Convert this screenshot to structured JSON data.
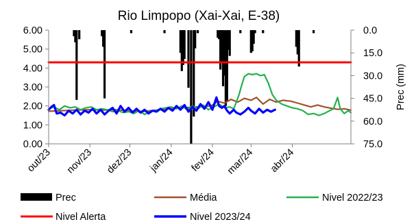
{
  "chart_data": {
    "type": "line",
    "title": "Rio Limpopo (Xai-Xai, E-38)",
    "y_left_label": "",
    "y_right_label": "Prec (mm)",
    "y_left_ticks": [
      "0.00",
      "1.00",
      "2.00",
      "3.00",
      "4.00",
      "5.00",
      "6.00"
    ],
    "y_right_ticks": [
      "0.0",
      "15.0",
      "30.0",
      "45.0",
      "60.0",
      "75.0"
    ],
    "y_left_range": [
      0,
      6
    ],
    "y_right_range": [
      0,
      75
    ],
    "y_right_inverted": true,
    "x_ticks": [
      "out/23",
      "nov/23",
      "dez/23",
      "jan/24",
      "fev/24",
      "mar/24",
      "abr/24"
    ],
    "x_tick_dates": [
      "2023-10-01",
      "2023-11-01",
      "2023-12-01",
      "2024-01-01",
      "2024-02-01",
      "2024-03-01",
      "2024-04-01"
    ],
    "x_range": [
      "2023-10-01",
      "2024-05-15"
    ],
    "legend_position": "bottom",
    "series": [
      {
        "name": "Nivel Alerta",
        "axis": "left",
        "color": "#ff0000",
        "width": 3,
        "points": [
          [
            "2023-10-01",
            4.3
          ],
          [
            "2024-05-15",
            4.3
          ]
        ]
      },
      {
        "name": "Média",
        "axis": "left",
        "color": "#a0522d",
        "width": 2.2,
        "points": [
          [
            "2023-10-01",
            1.72
          ],
          [
            "2023-10-10",
            1.75
          ],
          [
            "2023-10-20",
            1.78
          ],
          [
            "2023-10-31",
            1.8
          ],
          [
            "2023-11-10",
            1.78
          ],
          [
            "2023-11-20",
            1.8
          ],
          [
            "2023-11-30",
            1.75
          ],
          [
            "2023-12-10",
            1.7
          ],
          [
            "2023-12-20",
            1.78
          ],
          [
            "2023-12-31",
            1.85
          ],
          [
            "2024-01-10",
            1.9
          ],
          [
            "2024-01-20",
            1.95
          ],
          [
            "2024-01-31",
            2.0
          ],
          [
            "2024-02-05",
            2.25
          ],
          [
            "2024-02-10",
            2.15
          ],
          [
            "2024-02-15",
            2.35
          ],
          [
            "2024-02-20",
            2.2
          ],
          [
            "2024-02-25",
            2.4
          ],
          [
            "2024-03-01",
            2.3
          ],
          [
            "2024-03-05",
            2.45
          ],
          [
            "2024-03-10",
            2.1
          ],
          [
            "2024-03-15",
            2.35
          ],
          [
            "2024-03-20",
            2.2
          ],
          [
            "2024-03-25",
            2.3
          ],
          [
            "2024-03-31",
            2.25
          ],
          [
            "2024-04-05",
            2.15
          ],
          [
            "2024-04-10",
            2.05
          ],
          [
            "2024-04-15",
            1.95
          ],
          [
            "2024-04-20",
            2.05
          ],
          [
            "2024-04-25",
            1.95
          ],
          [
            "2024-04-30",
            1.88
          ],
          [
            "2024-05-05",
            1.82
          ],
          [
            "2024-05-10",
            1.85
          ],
          [
            "2024-05-15",
            1.78
          ]
        ]
      },
      {
        "name": "Nivel 2022/23",
        "axis": "left",
        "color": "#22b14c",
        "width": 2.2,
        "points": [
          [
            "2023-10-01",
            1.85
          ],
          [
            "2023-10-05",
            1.95
          ],
          [
            "2023-10-09",
            1.8
          ],
          [
            "2023-10-13",
            2.0
          ],
          [
            "2023-10-17",
            1.9
          ],
          [
            "2023-10-21",
            1.95
          ],
          [
            "2023-10-25",
            1.8
          ],
          [
            "2023-10-29",
            1.9
          ],
          [
            "2023-11-02",
            1.95
          ],
          [
            "2023-11-06",
            1.8
          ],
          [
            "2023-11-10",
            1.85
          ],
          [
            "2023-11-14",
            1.8
          ],
          [
            "2023-11-18",
            1.7
          ],
          [
            "2023-11-22",
            1.75
          ],
          [
            "2023-11-26",
            1.65
          ],
          [
            "2023-11-30",
            1.7
          ],
          [
            "2023-12-04",
            1.6
          ],
          [
            "2023-12-08",
            1.75
          ],
          [
            "2023-12-12",
            1.55
          ],
          [
            "2023-12-16",
            1.7
          ],
          [
            "2023-12-20",
            1.75
          ],
          [
            "2023-12-24",
            1.85
          ],
          [
            "2023-12-28",
            1.9
          ],
          [
            "2024-01-01",
            1.95
          ],
          [
            "2024-01-05",
            1.85
          ],
          [
            "2024-01-09",
            2.0
          ],
          [
            "2024-01-13",
            1.8
          ],
          [
            "2024-01-17",
            2.0
          ],
          [
            "2024-01-21",
            1.85
          ],
          [
            "2024-01-25",
            2.05
          ],
          [
            "2024-01-29",
            1.8
          ],
          [
            "2024-02-02",
            1.95
          ],
          [
            "2024-02-06",
            2.1
          ],
          [
            "2024-02-10",
            1.9
          ],
          [
            "2024-02-14",
            1.95
          ],
          [
            "2024-02-17",
            1.85
          ],
          [
            "2024-02-19",
            2.2
          ],
          [
            "2024-02-21",
            2.6
          ],
          [
            "2024-02-23",
            3.1
          ],
          [
            "2024-02-25",
            3.55
          ],
          [
            "2024-02-28",
            3.7
          ],
          [
            "2024-03-02",
            3.65
          ],
          [
            "2024-03-05",
            3.7
          ],
          [
            "2024-03-08",
            3.6
          ],
          [
            "2024-03-11",
            3.65
          ],
          [
            "2024-03-14",
            3.2
          ],
          [
            "2024-03-17",
            2.6
          ],
          [
            "2024-03-20",
            2.3
          ],
          [
            "2024-03-24",
            2.1
          ],
          [
            "2024-03-28",
            2.0
          ],
          [
            "2024-04-01",
            1.9
          ],
          [
            "2024-04-05",
            1.85
          ],
          [
            "2024-04-09",
            1.75
          ],
          [
            "2024-04-13",
            1.55
          ],
          [
            "2024-04-17",
            1.6
          ],
          [
            "2024-04-21",
            1.5
          ],
          [
            "2024-04-25",
            1.6
          ],
          [
            "2024-04-29",
            1.75
          ],
          [
            "2024-05-02",
            1.85
          ],
          [
            "2024-05-05",
            2.45
          ],
          [
            "2024-05-07",
            1.85
          ],
          [
            "2024-05-10",
            1.6
          ],
          [
            "2024-05-13",
            1.75
          ],
          [
            "2024-05-15",
            1.65
          ]
        ]
      },
      {
        "name": "Nivel 2023/24",
        "axis": "left",
        "color": "#0000ff",
        "width": 3.2,
        "points": [
          [
            "2023-10-01",
            1.8
          ],
          [
            "2023-10-03",
            1.95
          ],
          [
            "2023-10-05",
            2.05
          ],
          [
            "2023-10-07",
            1.6
          ],
          [
            "2023-10-10",
            1.65
          ],
          [
            "2023-10-13",
            1.5
          ],
          [
            "2023-10-16",
            1.75
          ],
          [
            "2023-10-19",
            1.6
          ],
          [
            "2023-10-22",
            1.8
          ],
          [
            "2023-10-25",
            1.55
          ],
          [
            "2023-10-28",
            1.75
          ],
          [
            "2023-10-31",
            1.65
          ],
          [
            "2023-11-03",
            1.85
          ],
          [
            "2023-11-06",
            1.6
          ],
          [
            "2023-11-09",
            1.8
          ],
          [
            "2023-11-12",
            1.55
          ],
          [
            "2023-11-15",
            1.75
          ],
          [
            "2023-11-18",
            1.9
          ],
          [
            "2023-11-21",
            1.6
          ],
          [
            "2023-11-24",
            2.0
          ],
          [
            "2023-11-27",
            1.7
          ],
          [
            "2023-11-30",
            1.9
          ],
          [
            "2023-12-03",
            1.65
          ],
          [
            "2023-12-06",
            1.85
          ],
          [
            "2023-12-09",
            1.65
          ],
          [
            "2023-12-12",
            1.8
          ],
          [
            "2023-12-15",
            1.6
          ],
          [
            "2023-12-18",
            1.75
          ],
          [
            "2023-12-21",
            1.7
          ],
          [
            "2023-12-24",
            1.85
          ],
          [
            "2023-12-27",
            1.7
          ],
          [
            "2023-12-30",
            1.9
          ],
          [
            "2024-01-02",
            1.75
          ],
          [
            "2024-01-05",
            2.0
          ],
          [
            "2024-01-08",
            1.8
          ],
          [
            "2024-01-11",
            2.05
          ],
          [
            "2024-01-14",
            1.7
          ],
          [
            "2024-01-17",
            1.95
          ],
          [
            "2024-01-20",
            1.75
          ],
          [
            "2024-01-23",
            2.1
          ],
          [
            "2024-01-26",
            1.85
          ],
          [
            "2024-01-29",
            2.2
          ],
          [
            "2024-02-01",
            1.8
          ],
          [
            "2024-02-04",
            2.45
          ],
          [
            "2024-02-06",
            2.0
          ],
          [
            "2024-02-08",
            1.9
          ],
          [
            "2024-02-10",
            2.0
          ],
          [
            "2024-02-12",
            1.75
          ],
          [
            "2024-02-14",
            1.6
          ],
          [
            "2024-02-17",
            1.8
          ],
          [
            "2024-02-19",
            1.65
          ],
          [
            "2024-02-22",
            1.55
          ],
          [
            "2024-02-25",
            1.7
          ],
          [
            "2024-02-28",
            1.9
          ],
          [
            "2024-03-01",
            1.75
          ],
          [
            "2024-03-04",
            1.6
          ],
          [
            "2024-03-07",
            1.85
          ],
          [
            "2024-03-10",
            1.65
          ],
          [
            "2024-03-13",
            1.8
          ],
          [
            "2024-03-16",
            1.7
          ],
          [
            "2024-03-19",
            1.8
          ]
        ]
      }
    ],
    "precipitation": {
      "name": "Prec",
      "axis": "right",
      "color": "#000000",
      "bars": [
        [
          "2023-10-20",
          4
        ],
        [
          "2023-10-21",
          8
        ],
        [
          "2023-10-22",
          46
        ],
        [
          "2023-10-24",
          6
        ],
        [
          "2023-11-10",
          4
        ],
        [
          "2023-11-11",
          11
        ],
        [
          "2023-11-12",
          45
        ],
        [
          "2023-12-02",
          2
        ],
        [
          "2023-12-27",
          2
        ],
        [
          "2024-01-08",
          15
        ],
        [
          "2024-01-09",
          27
        ],
        [
          "2024-01-10",
          23
        ],
        [
          "2024-01-11",
          19
        ],
        [
          "2024-01-14",
          38
        ],
        [
          "2024-01-16",
          78
        ],
        [
          "2024-01-18",
          57
        ],
        [
          "2024-01-19",
          12
        ],
        [
          "2024-01-21",
          2
        ],
        [
          "2024-02-05",
          5
        ],
        [
          "2024-02-06",
          6
        ],
        [
          "2024-02-07",
          26
        ],
        [
          "2024-02-08",
          21
        ],
        [
          "2024-02-09",
          37
        ],
        [
          "2024-02-10",
          30
        ],
        [
          "2024-02-11",
          50
        ],
        [
          "2024-02-12",
          47
        ],
        [
          "2024-02-13",
          13
        ],
        [
          "2024-02-14",
          17
        ],
        [
          "2024-02-22",
          2
        ],
        [
          "2024-03-01",
          15
        ],
        [
          "2024-03-02",
          14
        ],
        [
          "2024-03-03",
          9
        ],
        [
          "2024-03-04",
          2
        ],
        [
          "2024-03-10",
          2
        ],
        [
          "2024-04-04",
          11
        ],
        [
          "2024-04-05",
          16
        ],
        [
          "2024-04-06",
          24
        ],
        [
          "2024-04-17",
          2
        ]
      ]
    }
  }
}
